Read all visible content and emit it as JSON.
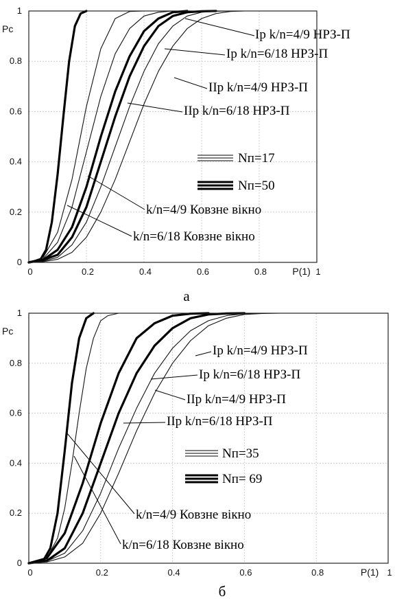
{
  "chart_data": [
    {
      "type": "line",
      "panel_label": "а",
      "xlabel": "P(1)",
      "ylabel": "Pc",
      "xlim": [
        0,
        1
      ],
      "ylim": [
        0,
        1
      ],
      "grid": true,
      "x_ticks": [
        "0",
        "0.2",
        "0.4",
        "0.6",
        "0.8",
        "1"
      ],
      "y_ticks": [
        "0",
        "0.2",
        "0.4",
        "0.6",
        "0.8",
        "1"
      ],
      "series": [
        {
          "weight": "thick",
          "x": [
            0,
            0.04,
            0.06,
            0.08,
            0.1,
            0.12,
            0.14,
            0.16,
            0.18,
            0.2
          ],
          "y": [
            0,
            0.01,
            0.05,
            0.16,
            0.35,
            0.58,
            0.8,
            0.94,
            0.99,
            1.0
          ]
        },
        {
          "weight": "thin",
          "x": [
            0,
            0.05,
            0.1,
            0.15,
            0.2,
            0.25,
            0.3,
            0.35,
            0.4
          ],
          "y": [
            0,
            0.02,
            0.12,
            0.33,
            0.62,
            0.85,
            0.97,
            0.998,
            1.0
          ]
        },
        {
          "weight": "thin",
          "x": [
            0,
            0.05,
            0.1,
            0.15,
            0.2,
            0.25,
            0.3,
            0.35,
            0.4,
            0.45,
            0.5
          ],
          "y": [
            0,
            0.015,
            0.08,
            0.22,
            0.44,
            0.66,
            0.83,
            0.93,
            0.98,
            0.995,
            1.0
          ]
        },
        {
          "weight": "thick",
          "x": [
            0,
            0.05,
            0.1,
            0.15,
            0.2,
            0.25,
            0.3,
            0.35,
            0.4,
            0.45,
            0.5,
            0.55
          ],
          "y": [
            0,
            0.01,
            0.05,
            0.14,
            0.3,
            0.5,
            0.68,
            0.82,
            0.92,
            0.97,
            0.995,
            1.0
          ]
        },
        {
          "weight": "thick",
          "x": [
            0,
            0.05,
            0.1,
            0.15,
            0.2,
            0.25,
            0.3,
            0.35,
            0.4,
            0.45,
            0.5,
            0.55,
            0.6,
            0.65
          ],
          "y": [
            0,
            0.01,
            0.03,
            0.1,
            0.22,
            0.4,
            0.58,
            0.74,
            0.86,
            0.94,
            0.98,
            0.995,
            0.999,
            1.0
          ]
        },
        {
          "weight": "thin",
          "x": [
            0,
            0.05,
            0.1,
            0.15,
            0.2,
            0.25,
            0.3,
            0.35,
            0.4,
            0.45,
            0.5,
            0.55,
            0.6,
            0.65,
            0.7
          ],
          "y": [
            0,
            0.005,
            0.02,
            0.07,
            0.16,
            0.3,
            0.46,
            0.62,
            0.76,
            0.87,
            0.94,
            0.98,
            0.995,
            0.999,
            1.0
          ]
        },
        {
          "weight": "thin",
          "x": [
            0,
            0.05,
            0.1,
            0.15,
            0.2,
            0.25,
            0.3,
            0.35,
            0.4,
            0.45,
            0.5,
            0.55,
            0.6,
            0.65,
            0.7,
            0.75
          ],
          "y": [
            0,
            0.003,
            0.012,
            0.04,
            0.1,
            0.2,
            0.33,
            0.48,
            0.63,
            0.76,
            0.86,
            0.93,
            0.97,
            0.99,
            0.998,
            1.0
          ]
        }
      ],
      "annotations": [
        {
          "text": "Ір k/n=4/9 НРЗ-П"
        },
        {
          "text": "Ір k/n=6/18 НРЗ-П"
        },
        {
          "text": "ІІр k/n=4/9 НРЗ-П"
        },
        {
          "text": "ІІр k/n=6/18 НРЗ-П"
        },
        {
          "text": "Nп=17"
        },
        {
          "text": "Nп=50"
        },
        {
          "text": "k/n=4/9  Ковзне вікно"
        },
        {
          "text": "k/n=6/18  Ковзне вікно"
        }
      ]
    },
    {
      "type": "line",
      "panel_label": "б",
      "xlabel": "P(1)",
      "ylabel": "Pc",
      "xlim": [
        0,
        1
      ],
      "ylim": [
        0,
        1
      ],
      "grid": true,
      "x_ticks": [
        "0",
        "0.2",
        "0.4",
        "0.6",
        "0.8",
        "1"
      ],
      "y_ticks": [
        "0",
        "0.2",
        "0.4",
        "0.6",
        "0.8",
        "1"
      ],
      "series": [
        {
          "weight": "thick",
          "x": [
            0,
            0.04,
            0.06,
            0.08,
            0.1,
            0.12,
            0.14,
            0.16,
            0.18
          ],
          "y": [
            0,
            0.01,
            0.06,
            0.2,
            0.45,
            0.72,
            0.9,
            0.98,
            1.0
          ]
        },
        {
          "weight": "thin",
          "x": [
            0,
            0.05,
            0.08,
            0.1,
            0.12,
            0.14,
            0.16,
            0.18,
            0.2,
            0.22,
            0.25
          ],
          "y": [
            0,
            0.02,
            0.1,
            0.22,
            0.4,
            0.6,
            0.78,
            0.9,
            0.97,
            0.99,
            1.0
          ]
        },
        {
          "weight": "thick",
          "x": [
            0,
            0.05,
            0.1,
            0.15,
            0.2,
            0.25,
            0.3,
            0.35,
            0.4,
            0.45,
            0.5
          ],
          "y": [
            0,
            0.02,
            0.12,
            0.32,
            0.56,
            0.76,
            0.9,
            0.96,
            0.99,
            0.998,
            1.0
          ]
        },
        {
          "weight": "thick",
          "x": [
            0,
            0.05,
            0.1,
            0.15,
            0.2,
            0.25,
            0.3,
            0.35,
            0.4,
            0.45,
            0.5,
            0.55,
            0.6
          ],
          "y": [
            0,
            0.01,
            0.06,
            0.2,
            0.4,
            0.6,
            0.76,
            0.87,
            0.94,
            0.98,
            0.995,
            0.999,
            1.0
          ]
        },
        {
          "weight": "thin",
          "x": [
            0,
            0.05,
            0.1,
            0.15,
            0.2,
            0.25,
            0.3,
            0.35,
            0.4,
            0.45,
            0.5,
            0.55,
            0.6,
            0.65
          ],
          "y": [
            0,
            0.008,
            0.04,
            0.13,
            0.28,
            0.46,
            0.62,
            0.76,
            0.86,
            0.93,
            0.97,
            0.99,
            0.998,
            1.0
          ]
        },
        {
          "weight": "thin",
          "x": [
            0,
            0.05,
            0.1,
            0.15,
            0.2,
            0.25,
            0.3,
            0.35,
            0.4,
            0.45,
            0.5,
            0.55,
            0.6,
            0.65,
            0.7
          ],
          "y": [
            0,
            0.005,
            0.025,
            0.08,
            0.2,
            0.36,
            0.53,
            0.68,
            0.8,
            0.89,
            0.95,
            0.98,
            0.995,
            0.999,
            1.0
          ]
        }
      ],
      "annotations": [
        {
          "text": "Ір k/n=4/9 НРЗ-П"
        },
        {
          "text": "Ір k/n=6/18 НРЗ-П"
        },
        {
          "text": "ІІр k/n=4/9 НРЗ-П"
        },
        {
          "text": "ІІр k/n=6/18 НРЗ-П"
        },
        {
          "text": "Nп=35"
        },
        {
          "text": "Nп= 69"
        },
        {
          "text": "k/n=4/9   Ковзне вікно"
        },
        {
          "text": "k/n=6/18   Ковзне вікно"
        }
      ]
    }
  ]
}
